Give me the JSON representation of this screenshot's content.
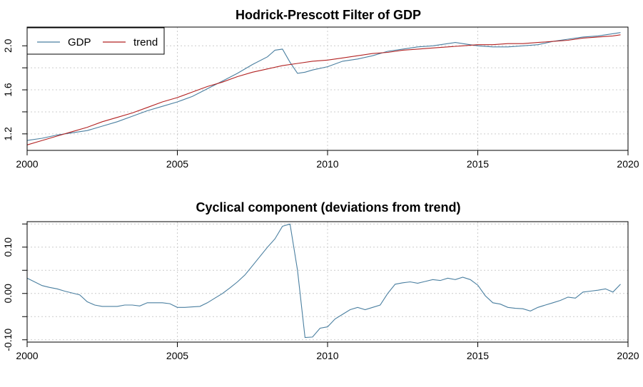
{
  "colors": {
    "gdp": "#4a7fa0",
    "trend": "#b22222",
    "cycle": "#4a7fa0",
    "grid": "#cccccc"
  },
  "chart_data": [
    {
      "type": "line",
      "title": "Hodrick-Prescott Filter of GDP",
      "xlabel": "",
      "ylabel": "",
      "xlim": [
        2000,
        2020
      ],
      "ylim": [
        1.05,
        2.17
      ],
      "xticks": [
        2000,
        2005,
        2010,
        2015,
        2020
      ],
      "yticks": [
        1.2,
        1.6,
        2.0
      ],
      "ytick_labels": [
        "1.2",
        "1.6",
        "2.0"
      ],
      "grid": true,
      "legend_position": "top-left",
      "series": [
        {
          "name": "GDP",
          "color": "#4a7fa0",
          "x": [
            2000.0,
            2000.5,
            2001.0,
            2001.5,
            2002.0,
            2002.5,
            2003.0,
            2003.5,
            2004.0,
            2004.5,
            2005.0,
            2005.5,
            2006.0,
            2006.5,
            2007.0,
            2007.5,
            2008.0,
            2008.25,
            2008.5,
            2008.75,
            2009.0,
            2009.25,
            2009.5,
            2010.0,
            2010.5,
            2011.0,
            2011.5,
            2012.0,
            2012.5,
            2013.0,
            2013.5,
            2014.0,
            2014.25,
            2014.5,
            2015.0,
            2015.5,
            2016.0,
            2016.5,
            2017.0,
            2017.5,
            2018.0,
            2018.5,
            2019.0,
            2019.5,
            2019.75
          ],
          "y": [
            1.14,
            1.16,
            1.19,
            1.21,
            1.23,
            1.27,
            1.31,
            1.36,
            1.41,
            1.45,
            1.49,
            1.54,
            1.61,
            1.68,
            1.75,
            1.83,
            1.9,
            1.96,
            1.97,
            1.85,
            1.75,
            1.76,
            1.78,
            1.81,
            1.86,
            1.88,
            1.91,
            1.95,
            1.97,
            1.99,
            2.0,
            2.02,
            2.03,
            2.02,
            2.0,
            1.99,
            1.99,
            2.0,
            2.01,
            2.04,
            2.06,
            2.08,
            2.09,
            2.11,
            2.12
          ]
        },
        {
          "name": "trend",
          "color": "#b22222",
          "x": [
            2000.0,
            2000.5,
            2001.0,
            2001.5,
            2002.0,
            2002.5,
            2003.0,
            2003.5,
            2004.0,
            2004.5,
            2005.0,
            2005.5,
            2006.0,
            2006.5,
            2007.0,
            2007.5,
            2008.0,
            2008.5,
            2009.0,
            2009.5,
            2010.0,
            2010.5,
            2011.0,
            2011.5,
            2012.0,
            2012.5,
            2013.0,
            2013.5,
            2014.0,
            2014.5,
            2015.0,
            2015.5,
            2016.0,
            2016.5,
            2017.0,
            2017.5,
            2018.0,
            2018.5,
            2019.0,
            2019.5,
            2019.75
          ],
          "y": [
            1.1,
            1.14,
            1.18,
            1.22,
            1.26,
            1.31,
            1.35,
            1.39,
            1.44,
            1.49,
            1.53,
            1.58,
            1.63,
            1.67,
            1.72,
            1.76,
            1.79,
            1.82,
            1.84,
            1.86,
            1.87,
            1.89,
            1.91,
            1.93,
            1.94,
            1.96,
            1.97,
            1.98,
            1.99,
            2.0,
            2.01,
            2.01,
            2.02,
            2.02,
            2.03,
            2.04,
            2.05,
            2.07,
            2.08,
            2.09,
            2.1
          ]
        }
      ]
    },
    {
      "type": "line",
      "title": "Cyclical component (deviations from trend)",
      "xlabel": "",
      "ylabel": "",
      "xlim": [
        2000,
        2020
      ],
      "ylim": [
        -0.105,
        0.155
      ],
      "xticks": [
        2000,
        2005,
        2010,
        2015,
        2020
      ],
      "yticks": [
        -0.1,
        0.0,
        0.1
      ],
      "ytick_labels": [
        "-0.10",
        "0.00",
        "0.10"
      ],
      "grid": true,
      "series": [
        {
          "color": "#4a7fa0",
          "x": [
            2000.0,
            2000.25,
            2000.5,
            2000.75,
            2001.0,
            2001.25,
            2001.5,
            2001.75,
            2002.0,
            2002.25,
            2002.5,
            2002.75,
            2003.0,
            2003.25,
            2003.5,
            2003.75,
            2004.0,
            2004.25,
            2004.5,
            2004.75,
            2005.0,
            2005.25,
            2005.5,
            2005.75,
            2006.0,
            2006.25,
            2006.5,
            2006.75,
            2007.0,
            2007.25,
            2007.5,
            2007.75,
            2008.0,
            2008.25,
            2008.5,
            2008.75,
            2009.0,
            2009.25,
            2009.5,
            2009.75,
            2010.0,
            2010.25,
            2010.5,
            2010.75,
            2011.0,
            2011.25,
            2011.5,
            2011.75,
            2012.0,
            2012.25,
            2012.5,
            2012.75,
            2013.0,
            2013.25,
            2013.5,
            2013.75,
            2014.0,
            2014.25,
            2014.5,
            2014.75,
            2015.0,
            2015.25,
            2015.5,
            2015.75,
            2016.0,
            2016.25,
            2016.5,
            2016.75,
            2017.0,
            2017.25,
            2017.5,
            2017.75,
            2018.0,
            2018.25,
            2018.5,
            2018.75,
            2019.0,
            2019.25,
            2019.5,
            2019.75
          ],
          "y": [
            0.033,
            0.025,
            0.017,
            0.013,
            0.01,
            0.005,
            0.001,
            -0.003,
            -0.018,
            -0.025,
            -0.028,
            -0.028,
            -0.028,
            -0.025,
            -0.025,
            -0.027,
            -0.02,
            -0.02,
            -0.02,
            -0.022,
            -0.03,
            -0.03,
            -0.029,
            -0.028,
            -0.02,
            -0.01,
            0.0,
            0.012,
            0.025,
            0.04,
            0.06,
            0.08,
            0.1,
            0.118,
            0.145,
            0.15,
            0.05,
            -0.095,
            -0.094,
            -0.075,
            -0.072,
            -0.055,
            -0.045,
            -0.035,
            -0.03,
            -0.035,
            -0.03,
            -0.025,
            0.0,
            0.02,
            0.023,
            0.025,
            0.022,
            0.026,
            0.03,
            0.028,
            0.033,
            0.03,
            0.035,
            0.03,
            0.018,
            -0.005,
            -0.02,
            -0.023,
            -0.03,
            -0.032,
            -0.033,
            -0.038,
            -0.03,
            -0.025,
            -0.02,
            -0.015,
            -0.008,
            -0.01,
            0.003,
            0.005,
            0.007,
            0.01,
            0.003,
            0.02
          ]
        }
      ]
    }
  ],
  "legend": {
    "items": [
      {
        "label": "GDP",
        "series": 0
      },
      {
        "label": "trend",
        "series": 1
      }
    ]
  }
}
